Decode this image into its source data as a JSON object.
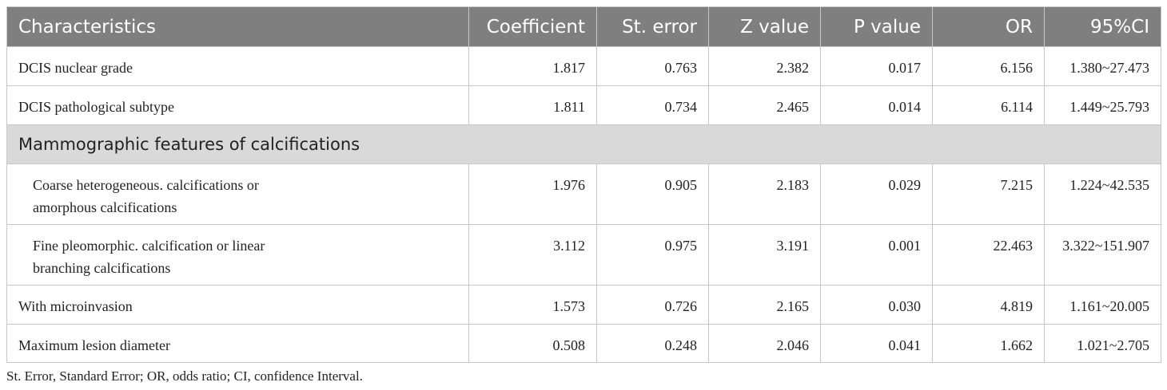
{
  "table": {
    "header": [
      "Characteristics",
      "Coefficient",
      "St. error",
      "Z value",
      "P value",
      "OR",
      "95%CI"
    ],
    "rows": [
      [
        "DCIS nuclear grade",
        "1.817",
        "0.763",
        "2.382",
        "0.017",
        "6.156",
        "1.380~27.473"
      ],
      [
        "DCIS pathological subtype",
        "1.811",
        "0.734",
        "2.465",
        "0.014",
        "6.114",
        "1.449~25.793"
      ],
      [
        "Mammographic features of calcifications"
      ],
      [
        "Coarse heterogeneous. calcifications or amorphous calcifications",
        "1.976",
        "0.905",
        "2.183",
        "0.029",
        "7.215",
        "1.224~42.535"
      ],
      [
        "Fine pleomorphic. calcification or linear branching calcifications",
        "3.112",
        "0.975",
        "3.191",
        "0.001",
        "22.463",
        "3.322~151.907"
      ],
      [
        "With microinvasion",
        "1.573",
        "0.726",
        "2.165",
        "0.030",
        "4.819",
        "1.161~20.005"
      ],
      [
        "Maximum lesion diameter",
        "0.508",
        "0.248",
        "2.046",
        "0.041",
        "1.662",
        "1.021~2.705"
      ]
    ]
  },
  "footnote": "St. Error, Standard Error; OR, odds ratio; CI, confidence Interval."
}
